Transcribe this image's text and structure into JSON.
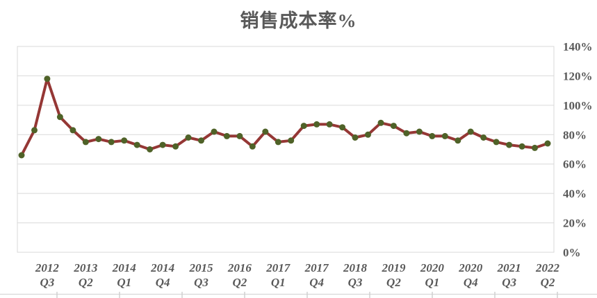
{
  "chart_data": {
    "type": "line",
    "title": "销售成本率%",
    "categories": [
      "2012 Q1",
      "2012 Q2",
      "2012 Q3",
      "2012 Q4",
      "2013 Q1",
      "2013 Q2",
      "2013 Q3",
      "2013 Q4",
      "2014 Q1",
      "2014 Q2",
      "2014 Q3",
      "2014 Q4",
      "2015 Q1",
      "2015 Q2",
      "2015 Q3",
      "2015 Q4",
      "2016 Q1",
      "2016 Q2",
      "2016 Q3",
      "2016 Q4",
      "2017 Q1",
      "2017 Q2",
      "2017 Q3",
      "2017 Q4",
      "2018 Q1",
      "2018 Q2",
      "2018 Q3",
      "2018 Q4",
      "2019 Q1",
      "2019 Q2",
      "2019 Q3",
      "2019 Q4",
      "2020 Q1",
      "2020 Q2",
      "2020 Q3",
      "2020 Q4",
      "2021 Q1",
      "2021 Q2",
      "2021 Q3",
      "2021 Q4",
      "2022 Q1",
      "2022 Q2"
    ],
    "values": [
      66,
      83,
      118,
      92,
      83,
      75,
      77,
      75,
      76,
      73,
      70,
      73,
      72,
      78,
      76,
      82,
      79,
      79,
      72,
      82,
      75,
      76,
      86,
      87,
      87,
      85,
      78,
      80,
      88,
      86,
      81,
      82,
      79,
      79,
      76,
      82,
      78,
      75,
      73,
      72,
      71,
      74
    ],
    "unit": "%",
    "ylim": [
      0,
      140
    ],
    "y_tick_step": 20,
    "y_tick_labels": [
      "0%",
      "20%",
      "40%",
      "60%",
      "80%",
      "100%",
      "120%",
      "140%"
    ],
    "y_axis_side": "right",
    "x_tick_indices": [
      2,
      5,
      8,
      11,
      14,
      17,
      20,
      23,
      26,
      29,
      32,
      35,
      38,
      41
    ],
    "x_tick_labels": [
      [
        "2012",
        "Q3"
      ],
      [
        "2013",
        "Q2"
      ],
      [
        "2014",
        "Q1"
      ],
      [
        "2014",
        "Q4"
      ],
      [
        "2015",
        "Q3"
      ],
      [
        "2016",
        "Q2"
      ],
      [
        "2017",
        "Q1"
      ],
      [
        "2017",
        "Q4"
      ],
      [
        "2018",
        "Q3"
      ],
      [
        "2019",
        "Q2"
      ],
      [
        "2020",
        "Q1"
      ],
      [
        "2020",
        "Q4"
      ],
      [
        "2021",
        "Q3"
      ],
      [
        "2022",
        "Q2"
      ]
    ],
    "grid": true,
    "legend": "none",
    "colors": {
      "line": "#953735",
      "marker": "#4F6228",
      "grid": "#D9D9D9",
      "plot_border": "#D9D9D9",
      "text": "#595959",
      "sheet_line": "#D0D0D0"
    }
  }
}
